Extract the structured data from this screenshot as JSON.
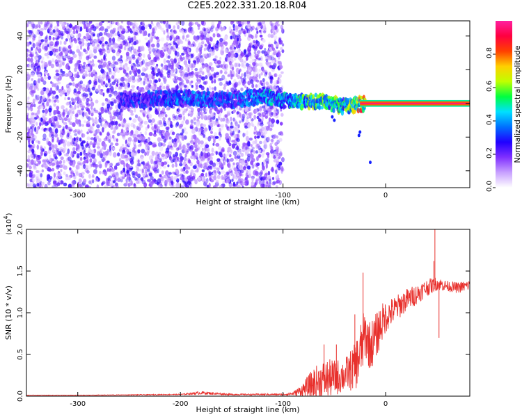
{
  "title": "C2E5.2022.331.20.18.R04",
  "chart_data": [
    {
      "type": "heatmap",
      "xlabel": "Height of straight line (km)",
      "ylabel": "Frequency (Hz)",
      "xlim": [
        -350,
        82
      ],
      "ylim": [
        -50,
        49
      ],
      "xticks": [
        -300,
        -200,
        -100,
        0
      ],
      "xtick_labels": [
        "-300",
        "-200",
        "-100",
        "0"
      ],
      "yticks": [
        -40,
        -20,
        0,
        20,
        40
      ],
      "ytick_labels": [
        "-40",
        "-20",
        "0",
        "20",
        "40"
      ],
      "colorbar": {
        "label": "Normalized spectral amplitude",
        "range": [
          0,
          1
        ],
        "ticks": [
          0.0,
          0.2,
          0.4,
          0.6,
          0.8
        ],
        "tick_labels": [
          "0.0",
          "0.2",
          "0.4",
          "0.6",
          "0.8"
        ],
        "colors": [
          "#ffffff",
          "#c8a0ff",
          "#8030ff",
          "#2000ff",
          "#0070ff",
          "#00e0ff",
          "#00ff40",
          "#c0ff00",
          "#ffd000",
          "#ff4000",
          "#ff0040",
          "#ff20a0"
        ]
      },
      "noise_region": {
        "x_from": -350,
        "x_to": -100,
        "level": 0.15
      },
      "signal_track": [
        {
          "x": -260,
          "freq": 2,
          "amplitude": 0.25
        },
        {
          "x": -220,
          "freq": 3,
          "amplitude": 0.3
        },
        {
          "x": -190,
          "freq": 3,
          "amplitude": 0.35
        },
        {
          "x": -150,
          "freq": 2,
          "amplitude": 0.3
        },
        {
          "x": -120,
          "freq": 4,
          "amplitude": 0.4
        },
        {
          "x": -100,
          "freq": 2,
          "amplitude": 0.4
        },
        {
          "x": -80,
          "freq": 1,
          "amplitude": 0.5
        },
        {
          "x": -60,
          "freq": 1,
          "amplitude": 0.55
        },
        {
          "x": -40,
          "freq": -2,
          "amplitude": 0.5
        },
        {
          "x": -30,
          "freq": -1,
          "amplitude": 0.6
        },
        {
          "x": -20,
          "freq": 0,
          "amplitude": 0.75
        },
        {
          "x": 0,
          "freq": 0,
          "amplitude": 0.9
        },
        {
          "x": 82,
          "freq": 0,
          "amplitude": 0.95
        }
      ]
    },
    {
      "type": "line",
      "xlabel": "Height of straight line (km)",
      "ylabel": "SNR (10 * v/v)",
      "y_multiplier": "(x10",
      "y_multiplier_exp": "4",
      "y_multiplier_close": ")",
      "xlim": [
        -350,
        82
      ],
      "ylim": [
        0,
        2.0
      ],
      "xticks": [
        -300,
        -200,
        -100,
        0
      ],
      "xtick_labels": [
        "-300",
        "-200",
        "-100",
        "0"
      ],
      "yticks": [
        0,
        0.5,
        1.0,
        1.5,
        2.0
      ],
      "ytick_labels": [
        "0.0",
        "0.5",
        "1.0",
        "1.5",
        "2.0"
      ],
      "color": "#e8302c",
      "series": [
        {
          "x": [
            -350,
            -300,
            -250,
            -200,
            -180,
            -150,
            -100,
            -90,
            -80,
            -70,
            -60,
            -50,
            -40,
            -30,
            -25,
            -20,
            -15,
            -10,
            -5,
            0,
            10,
            20,
            30,
            40,
            50,
            60,
            70,
            82
          ],
          "y": [
            0.01,
            0.01,
            0.015,
            0.02,
            0.04,
            0.02,
            0.02,
            0.03,
            0.08,
            0.15,
            0.2,
            0.22,
            0.25,
            0.35,
            0.5,
            0.75,
            0.6,
            0.7,
            0.85,
            0.95,
            1.05,
            1.15,
            1.22,
            1.3,
            1.35,
            1.32,
            1.3,
            1.33
          ],
          "noise_pct": [
            0.3,
            0.3,
            0.3,
            0.3,
            0.5,
            0.4,
            0.5,
            0.8,
            1.2,
            1.3,
            1.2,
            1.0,
            0.8,
            0.8,
            0.7,
            0.4,
            0.5,
            0.4,
            0.3,
            0.2,
            0.15,
            0.12,
            0.1,
            0.08,
            0.06,
            0.05,
            0.05,
            0.05
          ]
        }
      ],
      "spikes": [
        {
          "x": -22,
          "y": 1.48
        },
        {
          "x": -30,
          "y": 0.98
        },
        {
          "x": 48,
          "y": 2.0
        },
        {
          "x": 47,
          "y": 1.62
        },
        {
          "x": 52,
          "y": 0.7
        },
        {
          "x": -48,
          "y": 0.62
        },
        {
          "x": -60,
          "y": 0.62
        }
      ]
    }
  ]
}
